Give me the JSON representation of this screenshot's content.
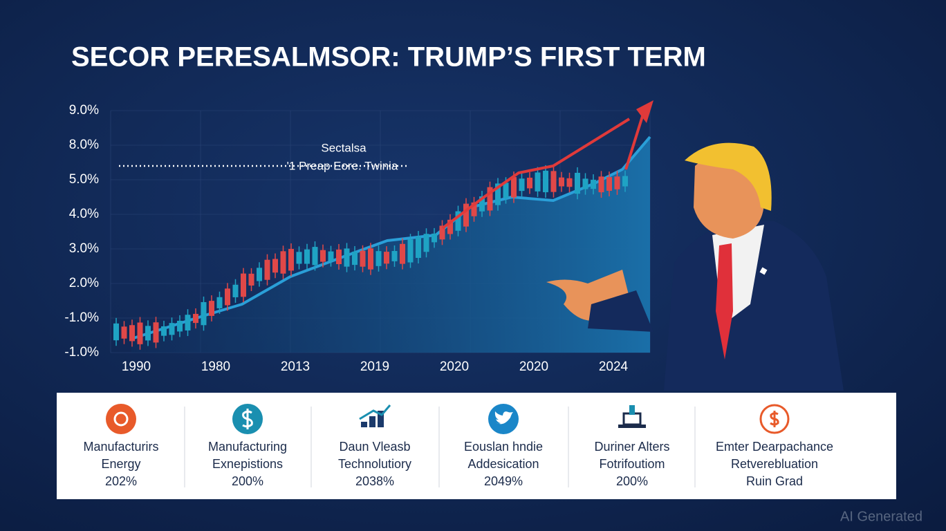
{
  "title": "SECOR PERESALMSOR: TRUMP’S FIRST TERM",
  "chart": {
    "y_labels": [
      "9.0%",
      "8.0%",
      "5.0%",
      "4.0%",
      "3.0%",
      "2.0%",
      "-1.0%",
      "-1.0%"
    ],
    "x_labels": [
      "1990",
      "1980",
      "2013",
      "2019",
      "2020",
      "2020",
      "2024"
    ],
    "annotation": {
      "title": "Sectalsa",
      "label": "'1 Preap Eore. Twinia"
    }
  },
  "cards": [
    {
      "lines": [
        "Manufacturirs",
        "Energy",
        "202%"
      ]
    },
    {
      "lines": [
        "Manufacturing",
        "Exnepistions",
        "200%"
      ]
    },
    {
      "lines": [
        "Daun Vleasb",
        "Technolutiory",
        "2038%"
      ]
    },
    {
      "lines": [
        "Eouslan hndie",
        "Addesication",
        "2049%"
      ]
    },
    {
      "lines": [
        "Duriner Alters",
        "Fotrifoutiom",
        "200%"
      ]
    },
    {
      "lines": [
        "Emter Dearpachance",
        "Retverebluation",
        "Ruin Grad"
      ]
    }
  ],
  "watermark": "AI Generated"
}
